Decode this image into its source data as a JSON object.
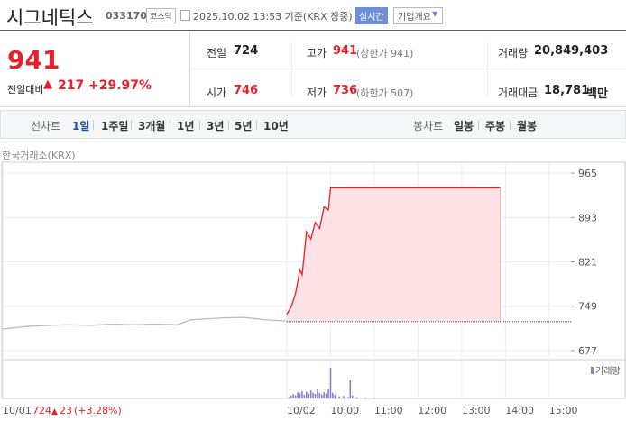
{
  "header": {
    "name": "시그네틱스",
    "code": "033170",
    "market": "코스닥",
    "time": "2025.10.02 13:53 기준(KRX 장중)",
    "realtime": "실시간",
    "company": "기업개요"
  },
  "quote": {
    "price": 941,
    "change_label": "전일대비",
    "change": 217,
    "change_pct": "+29.97%",
    "items": [
      {
        "label": "전일",
        "value": 724
      },
      {
        "label": "고가",
        "value": 941,
        "note": "(상한가 941)"
      },
      {
        "label": "거래량",
        "value": "20,849,403"
      },
      {
        "label": "시가",
        "value": 746
      },
      {
        "label": "저가",
        "value": 736,
        "note": "(하한가 507)"
      },
      {
        "label": "거래대금",
        "value": "18,781",
        "unit": "백만"
      }
    ]
  },
  "tabs": {
    "line_label": "선차트",
    "line": [
      "1일",
      "1주일",
      "3개월",
      "1년",
      "3년",
      "5년",
      "10년"
    ],
    "candle_label": "봉차트",
    "candle": [
      "일봉",
      "주봉",
      "월봉"
    ]
  },
  "chart_data": {
    "type": "line",
    "source": "한국거래소(KRX)",
    "series": [
      {
        "color": "#bbbbbb",
        "x": [
          2.5,
          3.0,
          3.5,
          4.0,
          4.5,
          5.0,
          5.5,
          6.0,
          6.5,
          6.8,
          7.5,
          8.0,
          8.5,
          9.0
        ],
        "values": [
          712,
          716,
          718,
          719,
          718,
          720,
          719,
          720,
          719,
          727,
          730,
          731,
          727,
          725
        ]
      },
      {
        "color": "#e8202a",
        "fill": "#fde3e5",
        "x": [
          9.0,
          9.1,
          9.2,
          9.3,
          9.35,
          9.45,
          9.55,
          9.65,
          9.75,
          9.85,
          9.95,
          10.0,
          13.88
        ],
        "values": [
          736,
          748,
          770,
          808,
          800,
          870,
          858,
          885,
          875,
          910,
          905,
          941,
          941
        ]
      }
    ],
    "xlim": [
      2.5,
      15.5
    ],
    "xticks": [
      {
        "value": 2.5,
        "label": "10/01"
      },
      {
        "value": 9,
        "label": "10/02"
      },
      {
        "value": 10,
        "label": "10:00"
      },
      {
        "value": 11,
        "label": "11:00"
      },
      {
        "value": 12,
        "label": "12:00"
      },
      {
        "value": 13,
        "label": "13:00"
      },
      {
        "value": 14,
        "label": "14:00"
      },
      {
        "value": 15,
        "label": "15:00"
      }
    ],
    "ylim": [
      663.8,
      982.6
    ],
    "yticks": [
      677,
      749,
      821,
      893,
      965
    ],
    "grid": true,
    "volume": {
      "name": "거래량",
      "color": "#8b7fc8",
      "x": [
        9.05,
        9.1,
        9.15,
        9.2,
        9.25,
        9.3,
        9.35,
        9.4,
        9.45,
        9.5,
        9.55,
        9.6,
        9.65,
        9.7,
        9.75,
        9.8,
        9.85,
        9.9,
        9.95,
        10.0,
        10.05,
        10.1,
        10.2,
        10.3,
        10.4,
        10.45,
        10.5,
        10.6,
        10.8,
        11.0
      ],
      "values": [
        60000,
        120000,
        180000,
        140000,
        260000,
        220000,
        300000,
        150000,
        280000,
        200000,
        340000,
        250000,
        190000,
        380000,
        230000,
        170000,
        260000,
        210000,
        400000,
        1300000,
        240000,
        150000,
        90000,
        110000,
        60000,
        780000,
        120000,
        50000,
        30000,
        20000
      ]
    }
  },
  "footer": {
    "price": 724,
    "change": 23,
    "change_pct": "(+3.28%)"
  }
}
